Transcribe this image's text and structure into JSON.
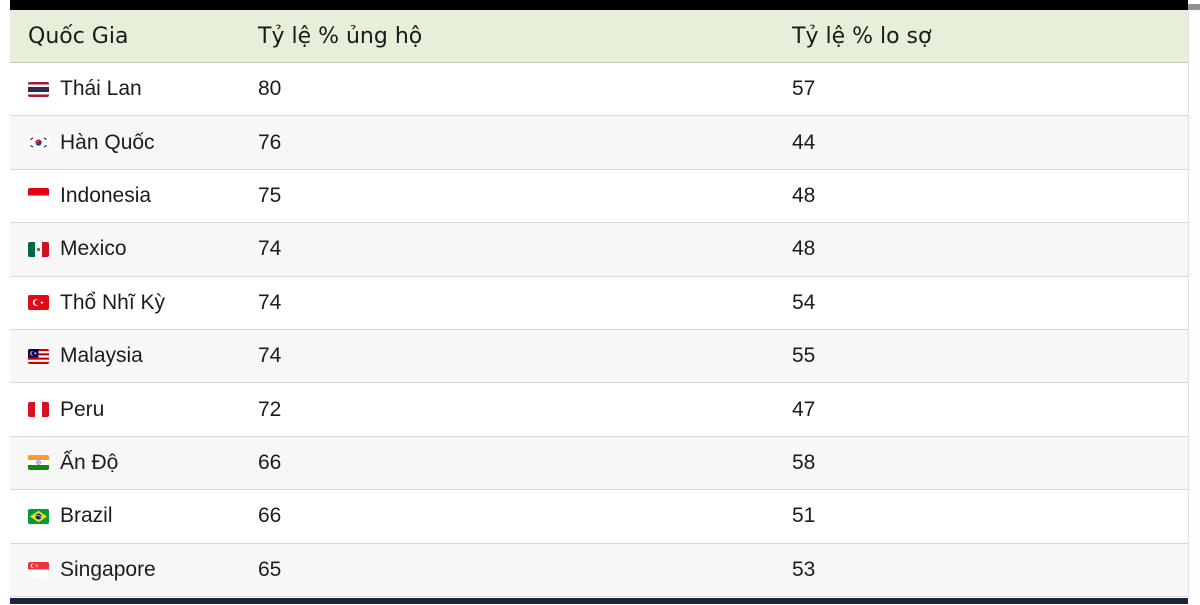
{
  "colors": {
    "header_bg": "#e6efda",
    "row_alt_bg": "#f7f7f7",
    "row_border": "#d8d8d8",
    "top_bar": "#000000",
    "bottom_bar": "#1b2440",
    "scrollbar_thumb": "#8f8f8f"
  },
  "table": {
    "columns": [
      {
        "key": "country",
        "label": "Quốc Gia"
      },
      {
        "key": "support",
        "label": "Tỷ lệ % ủng hộ"
      },
      {
        "key": "fear",
        "label": "Tỷ lệ % lo sợ"
      }
    ],
    "rows": [
      {
        "country": "Thái Lan",
        "flag": "flag-thailand",
        "flag_emoji": "🇹🇭",
        "support": "80",
        "fear": "57"
      },
      {
        "country": "Hàn Quốc",
        "flag": "flag-south-korea",
        "flag_emoji": "🇰🇷",
        "support": "76",
        "fear": "44"
      },
      {
        "country": "Indonesia",
        "flag": "flag-indonesia",
        "flag_emoji": "🇮🇩",
        "support": "75",
        "fear": "48"
      },
      {
        "country": "Mexico",
        "flag": "flag-mexico",
        "flag_emoji": "🇲🇽",
        "support": "74",
        "fear": "48"
      },
      {
        "country": "Thổ Nhĩ Kỳ",
        "flag": "flag-turkey",
        "flag_emoji": "🇹🇷",
        "support": "74",
        "fear": "54"
      },
      {
        "country": "Malaysia",
        "flag": "flag-malaysia",
        "flag_emoji": "🇲🇾",
        "support": "74",
        "fear": "55"
      },
      {
        "country": "Peru",
        "flag": "flag-peru",
        "flag_emoji": "🇵🇪",
        "support": "72",
        "fear": "47"
      },
      {
        "country": "Ấn Độ",
        "flag": "flag-india",
        "flag_emoji": "🇮🇳",
        "support": "66",
        "fear": "58"
      },
      {
        "country": "Brazil",
        "flag": "flag-brazil",
        "flag_emoji": "🇧🇷",
        "support": "66",
        "fear": "51"
      },
      {
        "country": "Singapore",
        "flag": "flag-singapore",
        "flag_emoji": "🇸🇬",
        "support": "65",
        "fear": "53"
      }
    ]
  },
  "chart_data": {
    "type": "table",
    "title": "",
    "columns": [
      "Quốc Gia",
      "Tỷ lệ % ủng hộ",
      "Tỷ lệ % lo sợ"
    ],
    "categories": [
      "Thái Lan",
      "Hàn Quốc",
      "Indonesia",
      "Mexico",
      "Thổ Nhĩ Kỳ",
      "Malaysia",
      "Peru",
      "Ấn Độ",
      "Brazil",
      "Singapore"
    ],
    "series": [
      {
        "name": "Tỷ lệ % ủng hộ",
        "values": [
          80,
          76,
          75,
          74,
          74,
          74,
          72,
          66,
          66,
          65
        ]
      },
      {
        "name": "Tỷ lệ % lo sợ",
        "values": [
          57,
          44,
          48,
          48,
          54,
          55,
          47,
          58,
          51,
          53
        ]
      }
    ]
  }
}
